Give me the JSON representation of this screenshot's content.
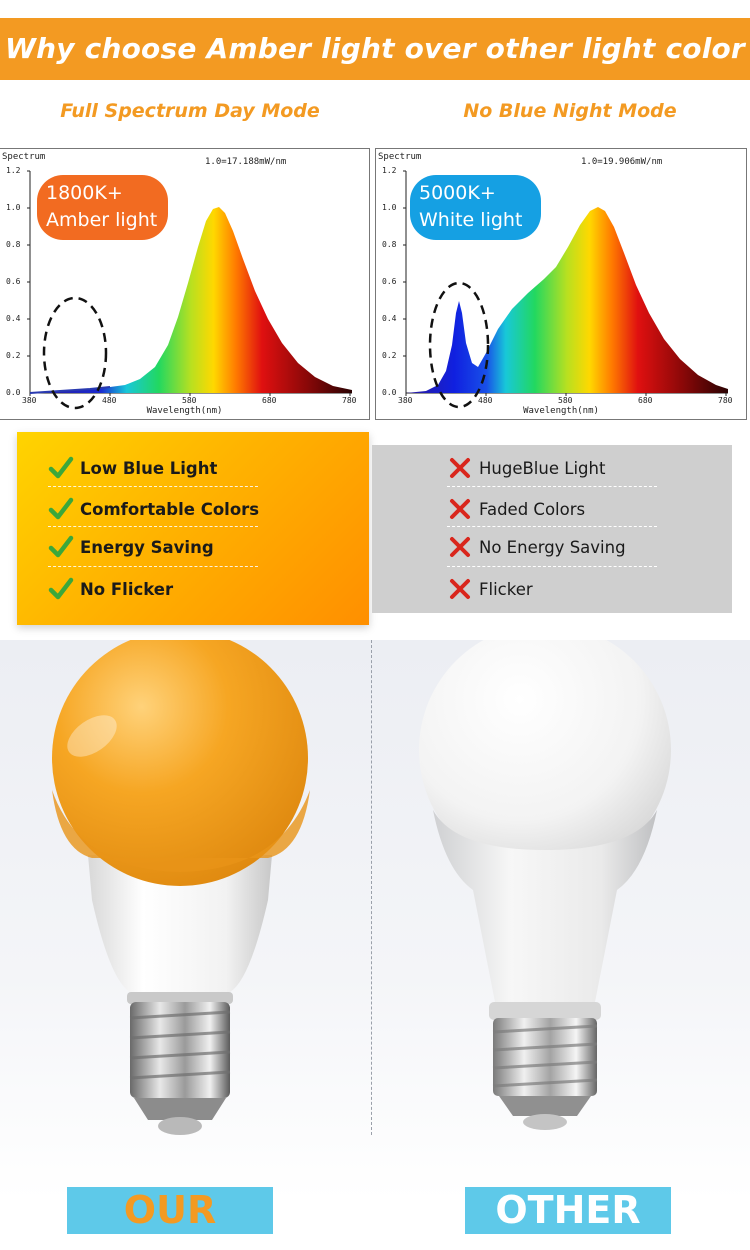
{
  "header": {
    "title": "Why choose Amber light over other light color"
  },
  "modes": {
    "left": "Full Spectrum Day Mode",
    "right": "No Blue Night Mode"
  },
  "spectra": {
    "left": {
      "badge_line1": "1800K+",
      "badge_line2": "Amber light",
      "badge_color": "#f26b21",
      "axis_title": "Spectrum",
      "peak_label": "1.0=17.188mW/nm",
      "x_label": "Wavelength(nm)",
      "y_ticks": [
        "1.2",
        "1.0",
        "0.8",
        "0.6",
        "0.4",
        "0.2",
        "0.0"
      ],
      "x_ticks": [
        "380",
        "480",
        "580",
        "680",
        "780"
      ]
    },
    "right": {
      "badge_line1": "5000K+",
      "badge_line2": "White light",
      "badge_color": "#15a0e3",
      "axis_title": "Spectrum",
      "peak_label": "1.0=19.906mW/nm",
      "x_label": "Wavelength(nm)",
      "y_ticks": [
        "1.2",
        "1.0",
        "0.8",
        "0.6",
        "0.4",
        "0.2",
        "0.0"
      ],
      "x_ticks": [
        "380",
        "480",
        "580",
        "680",
        "780"
      ]
    }
  },
  "features": {
    "ours": [
      {
        "icon": "check-icon",
        "label": "Low Blue Light"
      },
      {
        "icon": "check-icon",
        "label": "Comfortable Colors"
      },
      {
        "icon": "check-icon",
        "label": "Energy Saving"
      },
      {
        "icon": "check-icon",
        "label": "No Flicker"
      }
    ],
    "other": [
      {
        "icon": "cross-icon",
        "label": "HugeBlue Light"
      },
      {
        "icon": "cross-icon",
        "label": "Faded Colors"
      },
      {
        "icon": "cross-icon",
        "label": "No Energy Saving"
      },
      {
        "icon": "cross-icon",
        "label": "Flicker"
      }
    ]
  },
  "labels": {
    "ours": "OUR",
    "other": "OTHER"
  },
  "colors": {
    "accent": "#f39a22",
    "label_bg": "#5ec9e9",
    "check": "#3ba83b",
    "cross": "#d9261c"
  }
}
